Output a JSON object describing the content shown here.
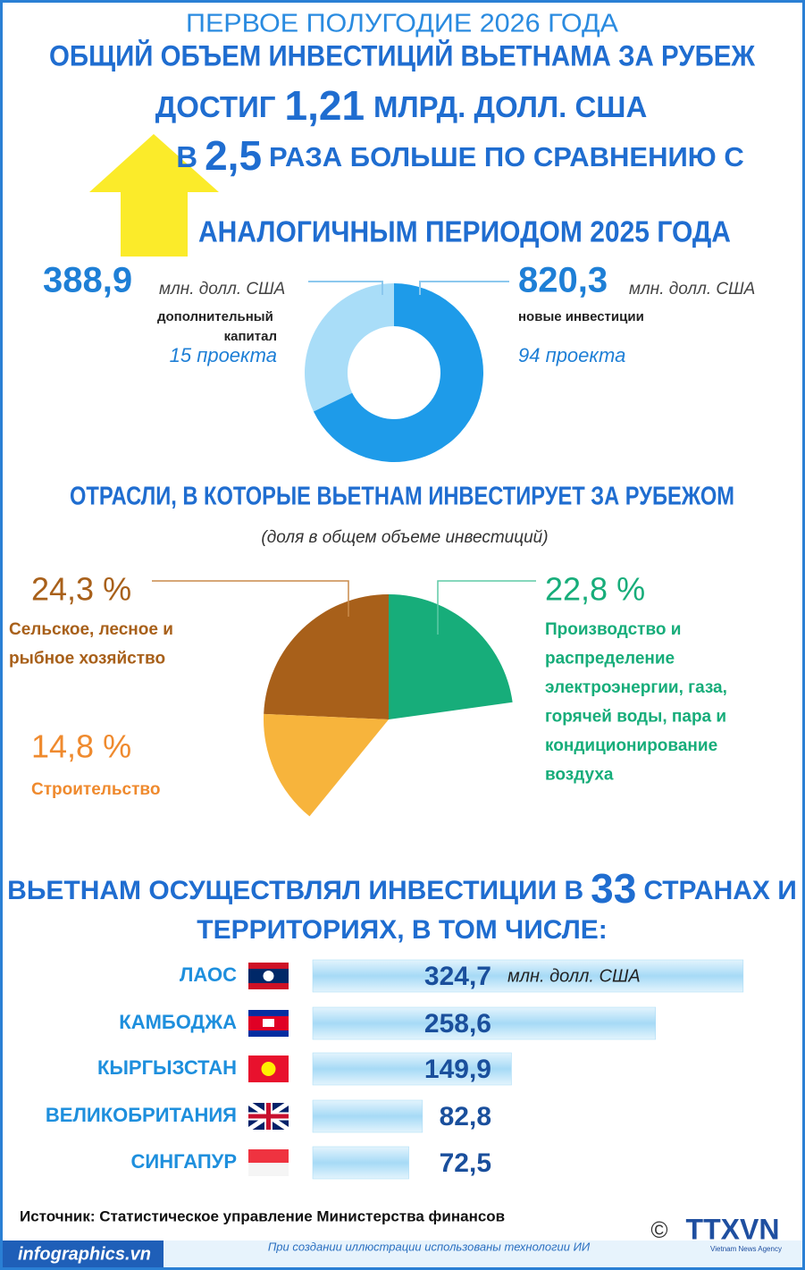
{
  "header": {
    "period": "ПЕРВОЕ ПОЛУГОДИЕ 2026 ГОДА",
    "title": "ОБЩИЙ ОБЪЕМ ИНВЕСТИЦИЙ ВЬЕТНАМА ЗА РУБЕЖ",
    "line1": [
      "ДОСТИГ",
      "1,21",
      "МЛРД. ДОЛЛ. США"
    ],
    "line2": [
      "В",
      "2,5",
      "РАЗА БОЛЬШЕ ПО СРАВНЕНИЮ С"
    ],
    "line3": "АНАЛОГИЧНЫМ ПЕРИОДОМ 2025 ГОДА"
  },
  "chart_data": [
    {
      "type": "donut",
      "categories": [
        "дополнительный капитал",
        "новые инвестиции"
      ],
      "values": [
        388.9,
        820.3
      ],
      "value_labels": [
        "388,9",
        "820,3"
      ],
      "unit": "млн. долл. США",
      "projects": [
        "15 проекта",
        "94 проекта"
      ],
      "colors": [
        "#a9ddf8",
        "#1e9be9"
      ]
    },
    {
      "type": "pie",
      "title": "ОТРАСЛИ, В КОТОРЫЕ ВЬЕТНАМ ИНВЕСТИРУЕТ ЗА РУБЕЖОМ",
      "subtitle": "(доля в общем объеме инвестиций)",
      "categories": [
        "Сельское, лесное и рыбное хозяйство",
        "Производство и распределение электроэнергии, газа, горячей воды, пара и кондиционирование воздуха",
        "Строительство"
      ],
      "values": [
        24.3,
        22.8,
        14.8
      ],
      "value_labels": [
        "24,3 %",
        "22,8 %",
        "14,8 %"
      ],
      "colors": [
        "#a8601a",
        "#17ad7a",
        "#f7b43c"
      ]
    },
    {
      "type": "bar",
      "orientation": "horizontal",
      "title_parts": [
        "ВЬЕТНАМ ОСУЩЕСТВЛЯЛ ИНВЕСТИЦИИ В",
        "33",
        "СТРАНАХ И",
        "ТЕРРИТОРИЯХ, В ТОМ ЧИСЛЕ:"
      ],
      "categories": [
        "ЛАОС",
        "КАМБОДЖА",
        "КЫРГЫЗСТАН",
        "ВЕЛИКОБРИТАНИЯ",
        "СИНГАПУР"
      ],
      "values": [
        324.7,
        258.6,
        149.9,
        82.8,
        72.5
      ],
      "value_labels": [
        "324,7",
        "258,6",
        "149,9",
        "82,8",
        "72,5"
      ],
      "unit": "млн. долл. США",
      "color": "#a6daf6"
    }
  ],
  "footer": {
    "source": "Источник: Статистическое управление Министерства финансов",
    "site": "infographics.vn",
    "note": "При создании иллюстрации использованы технологии ИИ",
    "copyright": "©",
    "logo": "TTXVN",
    "logo_sub": "Vietnam News Agency"
  }
}
